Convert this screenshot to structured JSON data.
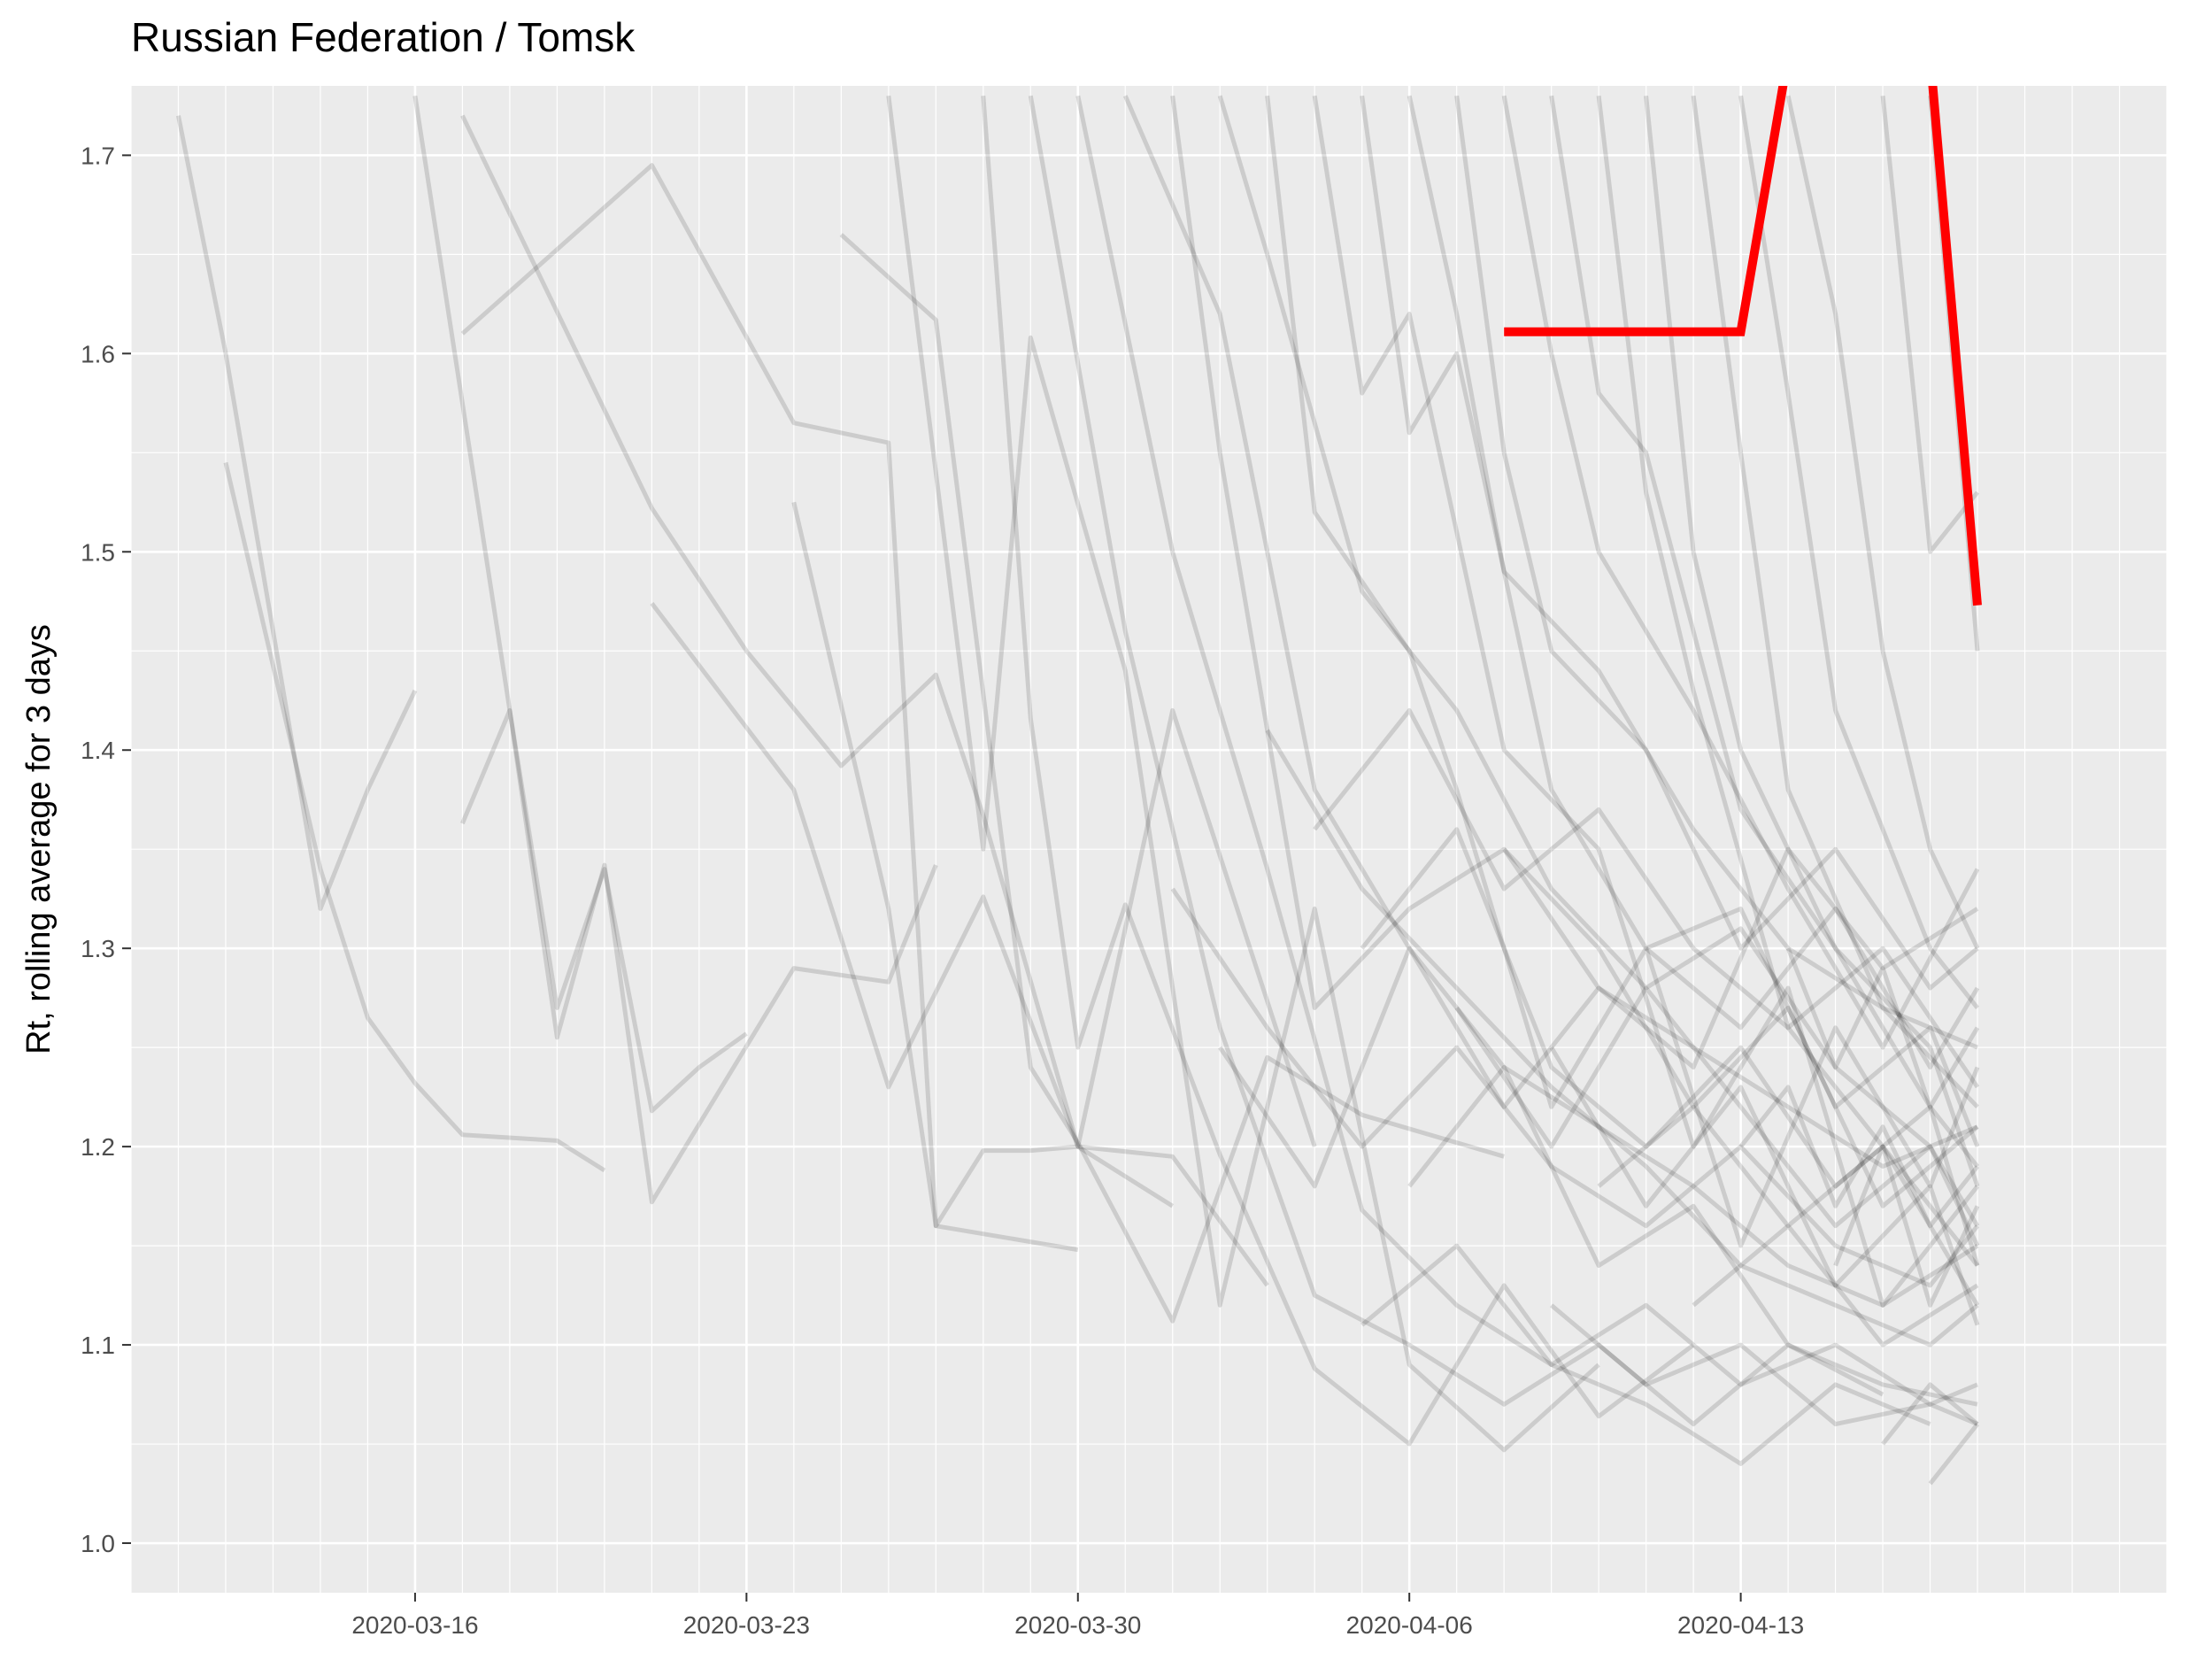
{
  "chart_data": {
    "type": "line",
    "title": "Russian Federation / Tomsk",
    "xlabel": "",
    "ylabel": "Rt, rolling average for 3 days",
    "x_ticks": [
      "2020-03-16",
      "2020-03-23",
      "2020-03-30",
      "2020-04-06",
      "2020-04-13"
    ],
    "y_ticks": [
      "1.0",
      "1.1",
      "1.2",
      "1.3",
      "1.4",
      "1.5",
      "1.6",
      "1.7"
    ],
    "xlim": [
      "2020-03-10",
      "2020-04-22"
    ],
    "ylim": [
      0.975,
      1.735
    ],
    "grid": true,
    "legend": "none",
    "colors": {
      "panel": "#ebebeb",
      "grid": "#ffffff",
      "highlight": "#ff0000",
      "background_series": "#000000"
    },
    "highlight_series": {
      "x": [
        "2020-04-08",
        "2020-04-09",
        "2020-04-10",
        "2020-04-11",
        "2020-04-12",
        "2020-04-13",
        "2020-04-14",
        "2020-04-15",
        "2020-04-16",
        "2020-04-17",
        "2020-04-18"
      ],
      "y": [
        1.611,
        1.611,
        1.611,
        1.611,
        1.611,
        1.611,
        1.75,
        1.85,
        1.85,
        1.75,
        1.473
      ]
    },
    "background_series": [
      {
        "x": [
          "2020-03-11",
          "2020-03-12",
          "2020-03-14",
          "2020-03-15",
          "2020-03-16"
        ],
        "y": [
          1.72,
          1.6,
          1.32,
          1.38,
          1.43
        ]
      },
      {
        "x": [
          "2020-03-12",
          "2020-03-14",
          "2020-03-15",
          "2020-03-16",
          "2020-03-17",
          "2020-03-19",
          "2020-03-20"
        ],
        "y": [
          1.545,
          1.34,
          1.265,
          1.232,
          1.206,
          1.203,
          1.188
        ]
      },
      {
        "x": [
          "2020-03-17",
          "2020-03-18",
          "2020-03-19",
          "2020-03-20",
          "2020-03-21",
          "2020-03-22",
          "2020-03-23"
        ],
        "y": [
          1.363,
          1.42,
          1.27,
          1.34,
          1.218,
          1.24,
          1.257
        ]
      },
      {
        "x": [
          "2020-03-17",
          "2020-03-21",
          "2020-03-24",
          "2020-03-26",
          "2020-03-27",
          "2020-03-30"
        ],
        "y": [
          1.61,
          1.695,
          1.565,
          1.555,
          1.16,
          1.148
        ]
      },
      {
        "x": [
          "2020-03-17",
          "2020-03-21",
          "2020-03-23",
          "2020-03-25",
          "2020-03-27",
          "2020-03-28",
          "2020-03-30",
          "2020-04-01"
        ],
        "y": [
          1.72,
          1.522,
          1.45,
          1.392,
          1.438,
          1.367,
          1.2,
          1.17
        ]
      },
      {
        "x": [
          "2020-03-16",
          "2020-03-18",
          "2020-03-19",
          "2020-03-20",
          "2020-03-21",
          "2020-03-24",
          "2020-03-26",
          "2020-03-27"
        ],
        "y": [
          1.73,
          1.42,
          1.255,
          1.342,
          1.172,
          1.29,
          1.283,
          1.342
        ]
      },
      {
        "x": [
          "2020-03-21",
          "2020-03-24",
          "2020-03-26",
          "2020-03-28",
          "2020-03-30",
          "2020-04-01",
          "2020-04-03"
        ],
        "y": [
          1.474,
          1.38,
          1.23,
          1.326,
          1.2,
          1.195,
          1.13
        ]
      },
      {
        "x": [
          "2020-03-24",
          "2020-03-26",
          "2020-03-27",
          "2020-03-28",
          "2020-03-29",
          "2020-03-30",
          "2020-04-01",
          "2020-04-04"
        ],
        "y": [
          1.525,
          1.32,
          1.16,
          1.198,
          1.198,
          1.2,
          1.42,
          1.2
        ]
      },
      {
        "x": [
          "2020-03-25",
          "2020-03-27",
          "2020-03-29",
          "2020-03-30",
          "2020-04-01",
          "2020-04-03",
          "2020-04-05",
          "2020-04-08"
        ],
        "y": [
          1.66,
          1.617,
          1.24,
          1.202,
          1.112,
          1.245,
          1.216,
          1.195
        ]
      },
      {
        "x": [
          "2020-03-26",
          "2020-03-28",
          "2020-03-29",
          "2020-03-31",
          "2020-04-02",
          "2020-04-04",
          "2020-04-06",
          "2020-04-08",
          "2020-04-10"
        ],
        "y": [
          1.73,
          1.35,
          1.608,
          1.44,
          1.12,
          1.32,
          1.09,
          1.047,
          1.09
        ]
      },
      {
        "x": [
          "2020-03-28",
          "2020-03-29",
          "2020-03-30",
          "2020-03-31",
          "2020-04-02",
          "2020-04-04",
          "2020-04-06",
          "2020-04-08",
          "2020-04-10",
          "2020-04-12"
        ],
        "y": [
          1.73,
          1.416,
          1.25,
          1.322,
          1.196,
          1.088,
          1.05,
          1.13,
          1.064,
          1.1
        ]
      },
      {
        "x": [
          "2020-03-29",
          "2020-03-31",
          "2020-04-02",
          "2020-04-04",
          "2020-04-06",
          "2020-04-08",
          "2020-04-10",
          "2020-04-12",
          "2020-04-14",
          "2020-04-16"
        ],
        "y": [
          1.73,
          1.46,
          1.26,
          1.125,
          1.1,
          1.07,
          1.1,
          1.06,
          1.1,
          1.075
        ]
      },
      {
        "x": [
          "2020-03-30",
          "2020-04-01",
          "2020-04-03",
          "2020-04-05",
          "2020-04-07",
          "2020-04-09",
          "2020-04-11",
          "2020-04-13",
          "2020-04-15",
          "2020-04-17"
        ],
        "y": [
          1.73,
          1.5,
          1.34,
          1.168,
          1.12,
          1.09,
          1.07,
          1.04,
          1.08,
          1.06
        ]
      },
      {
        "x": [
          "2020-03-31",
          "2020-04-02",
          "2020-04-04",
          "2020-04-06",
          "2020-04-08",
          "2020-04-10",
          "2020-04-12",
          "2020-04-14",
          "2020-04-16",
          "2020-04-18"
        ],
        "y": [
          1.73,
          1.62,
          1.38,
          1.3,
          1.24,
          1.21,
          1.18,
          1.14,
          1.12,
          1.15
        ]
      },
      {
        "x": [
          "2020-04-01",
          "2020-04-02",
          "2020-04-04",
          "2020-04-06",
          "2020-04-08",
          "2020-04-10",
          "2020-04-12",
          "2020-04-14",
          "2020-04-16",
          "2020-04-18"
        ],
        "y": [
          1.73,
          1.55,
          1.27,
          1.32,
          1.35,
          1.28,
          1.25,
          1.22,
          1.19,
          1.21
        ]
      },
      {
        "x": [
          "2020-04-02",
          "2020-04-03",
          "2020-04-05",
          "2020-04-07",
          "2020-04-09",
          "2020-04-11",
          "2020-04-13",
          "2020-04-15",
          "2020-04-17",
          "2020-04-18"
        ],
        "y": [
          1.73,
          1.65,
          1.48,
          1.42,
          1.33,
          1.28,
          1.31,
          1.24,
          1.2,
          1.16
        ]
      },
      {
        "x": [
          "2020-04-03",
          "2020-04-04",
          "2020-04-06",
          "2020-04-07",
          "2020-04-09",
          "2020-04-11",
          "2020-04-13",
          "2020-04-15",
          "2020-04-17",
          "2020-04-18"
        ],
        "y": [
          1.73,
          1.52,
          1.45,
          1.38,
          1.22,
          1.3,
          1.15,
          1.26,
          1.18,
          1.24
        ]
      },
      {
        "x": [
          "2020-04-04",
          "2020-04-05",
          "2020-04-06",
          "2020-04-08",
          "2020-04-10",
          "2020-04-12",
          "2020-04-14",
          "2020-04-16",
          "2020-04-18"
        ],
        "y": [
          1.73,
          1.58,
          1.62,
          1.4,
          1.35,
          1.2,
          1.28,
          1.12,
          1.18
        ]
      },
      {
        "x": [
          "2020-04-05",
          "2020-04-06",
          "2020-04-07",
          "2020-04-09",
          "2020-04-11",
          "2020-04-13",
          "2020-04-15",
          "2020-04-17",
          "2020-04-18"
        ],
        "y": [
          1.73,
          1.56,
          1.6,
          1.38,
          1.3,
          1.32,
          1.22,
          1.26,
          1.2
        ]
      },
      {
        "x": [
          "2020-04-06",
          "2020-04-07",
          "2020-04-08",
          "2020-04-10",
          "2020-04-12",
          "2020-04-14",
          "2020-04-16",
          "2020-04-18"
        ],
        "y": [
          1.73,
          1.62,
          1.49,
          1.44,
          1.36,
          1.3,
          1.27,
          1.25
        ]
      },
      {
        "x": [
          "2020-04-07",
          "2020-04-08",
          "2020-04-09",
          "2020-04-11",
          "2020-04-13",
          "2020-04-15",
          "2020-04-17",
          "2020-04-18"
        ],
        "y": [
          1.73,
          1.55,
          1.45,
          1.4,
          1.3,
          1.35,
          1.28,
          1.3
        ]
      },
      {
        "x": [
          "2020-04-08",
          "2020-04-09",
          "2020-04-10",
          "2020-04-12",
          "2020-04-14",
          "2020-04-16",
          "2020-04-18"
        ],
        "y": [
          1.73,
          1.6,
          1.5,
          1.42,
          1.33,
          1.25,
          1.34
        ]
      },
      {
        "x": [
          "2020-04-09",
          "2020-04-10",
          "2020-04-11",
          "2020-04-13",
          "2020-04-15",
          "2020-04-17",
          "2020-04-18"
        ],
        "y": [
          1.73,
          1.58,
          1.55,
          1.37,
          1.3,
          1.22,
          1.14
        ]
      },
      {
        "x": [
          "2020-04-10",
          "2020-04-11",
          "2020-04-12",
          "2020-04-14",
          "2020-04-16",
          "2020-04-18"
        ],
        "y": [
          1.73,
          1.53,
          1.43,
          1.26,
          1.2,
          1.12
        ]
      },
      {
        "x": [
          "2020-04-11",
          "2020-04-12",
          "2020-04-13",
          "2020-04-15",
          "2020-04-17",
          "2020-04-18"
        ],
        "y": [
          1.73,
          1.5,
          1.4,
          1.3,
          1.25,
          1.18
        ]
      },
      {
        "x": [
          "2020-04-12",
          "2020-04-13",
          "2020-04-14",
          "2020-04-16",
          "2020-04-18"
        ],
        "y": [
          1.73,
          1.55,
          1.38,
          1.27,
          1.22
        ]
      },
      {
        "x": [
          "2020-04-13",
          "2020-04-14",
          "2020-04-15",
          "2020-04-17",
          "2020-04-18"
        ],
        "y": [
          1.73,
          1.58,
          1.42,
          1.3,
          1.27
        ]
      },
      {
        "x": [
          "2020-04-14",
          "2020-04-15",
          "2020-04-16",
          "2020-04-17",
          "2020-04-18"
        ],
        "y": [
          1.73,
          1.62,
          1.45,
          1.35,
          1.3
        ]
      },
      {
        "x": [
          "2020-04-16",
          "2020-04-17",
          "2020-04-18"
        ],
        "y": [
          1.73,
          1.5,
          1.53
        ]
      },
      {
        "x": [
          "2020-04-17",
          "2020-04-18"
        ],
        "y": [
          1.73,
          1.45
        ]
      },
      {
        "x": [
          "2020-04-02",
          "2020-04-04",
          "2020-04-06",
          "2020-04-08",
          "2020-04-10",
          "2020-04-12",
          "2020-04-14",
          "2020-04-16",
          "2020-04-18"
        ],
        "y": [
          1.25,
          1.18,
          1.3,
          1.22,
          1.28,
          1.24,
          1.35,
          1.29,
          1.32
        ]
      },
      {
        "x": [
          "2020-04-01",
          "2020-04-03",
          "2020-04-05",
          "2020-04-07",
          "2020-04-09",
          "2020-04-11",
          "2020-04-13",
          "2020-04-15",
          "2020-04-17",
          "2020-04-18"
        ],
        "y": [
          1.33,
          1.26,
          1.2,
          1.25,
          1.19,
          1.16,
          1.2,
          1.15,
          1.13,
          1.16
        ]
      },
      {
        "x": [
          "2020-04-03",
          "2020-04-05",
          "2020-04-07",
          "2020-04-09",
          "2020-04-11",
          "2020-04-13",
          "2020-04-15",
          "2020-04-17",
          "2020-04-18"
        ],
        "y": [
          1.41,
          1.33,
          1.28,
          1.23,
          1.19,
          1.14,
          1.12,
          1.1,
          1.12
        ]
      },
      {
        "x": [
          "2020-04-04",
          "2020-04-06",
          "2020-04-08",
          "2020-04-10",
          "2020-04-12",
          "2020-04-14",
          "2020-04-16",
          "2020-04-18"
        ],
        "y": [
          1.36,
          1.42,
          1.33,
          1.37,
          1.3,
          1.26,
          1.3,
          1.23
        ]
      },
      {
        "x": [
          "2020-04-05",
          "2020-04-07",
          "2020-04-09",
          "2020-04-11",
          "2020-04-13",
          "2020-04-15",
          "2020-04-17",
          "2020-04-18"
        ],
        "y": [
          1.3,
          1.36,
          1.24,
          1.2,
          1.25,
          1.18,
          1.22,
          1.19
        ]
      },
      {
        "x": [
          "2020-04-06",
          "2020-04-08",
          "2020-04-10",
          "2020-04-12",
          "2020-04-14",
          "2020-04-16",
          "2020-04-18"
        ],
        "y": [
          1.18,
          1.24,
          1.14,
          1.17,
          1.1,
          1.08,
          1.07
        ]
      },
      {
        "x": [
          "2020-04-07",
          "2020-04-09",
          "2020-04-11",
          "2020-04-13",
          "2020-04-15",
          "2020-04-17",
          "2020-04-18"
        ],
        "y": [
          1.27,
          1.2,
          1.28,
          1.22,
          1.16,
          1.2,
          1.15
        ]
      },
      {
        "x": [
          "2020-04-08",
          "2020-04-10",
          "2020-04-12",
          "2020-04-14",
          "2020-04-16",
          "2020-04-18"
        ],
        "y": [
          1.35,
          1.3,
          1.22,
          1.27,
          1.17,
          1.21
        ]
      },
      {
        "x": [
          "2020-04-09",
          "2020-04-11",
          "2020-04-13",
          "2020-04-15",
          "2020-04-17",
          "2020-04-18"
        ],
        "y": [
          1.25,
          1.17,
          1.23,
          1.13,
          1.18,
          1.11
        ]
      },
      {
        "x": [
          "2020-04-10",
          "2020-04-12",
          "2020-04-14",
          "2020-04-16",
          "2020-04-18"
        ],
        "y": [
          1.18,
          1.22,
          1.16,
          1.2,
          1.14
        ]
      },
      {
        "x": [
          "2020-04-11",
          "2020-04-13",
          "2020-04-15",
          "2020-04-17",
          "2020-04-18"
        ],
        "y": [
          1.3,
          1.26,
          1.32,
          1.24,
          1.28
        ]
      },
      {
        "x": [
          "2020-04-12",
          "2020-04-14",
          "2020-04-16",
          "2020-04-18"
        ],
        "y": [
          1.12,
          1.16,
          1.1,
          1.13
        ]
      },
      {
        "x": [
          "2020-04-09",
          "2020-04-11",
          "2020-04-13",
          "2020-04-15",
          "2020-04-17",
          "2020-04-18"
        ],
        "y": [
          1.12,
          1.08,
          1.1,
          1.06,
          1.07,
          1.06
        ]
      },
      {
        "x": [
          "2020-04-05",
          "2020-04-07",
          "2020-04-09",
          "2020-04-11",
          "2020-04-13",
          "2020-04-15",
          "2020-04-17",
          "2020-04-18"
        ],
        "y": [
          1.11,
          1.15,
          1.09,
          1.12,
          1.08,
          1.1,
          1.07,
          1.08
        ]
      },
      {
        "x": [
          "2020-04-13",
          "2020-04-14",
          "2020-04-15",
          "2020-04-16",
          "2020-04-17",
          "2020-04-18"
        ],
        "y": [
          1.2,
          1.23,
          1.17,
          1.21,
          1.16,
          1.19
        ]
      },
      {
        "x": [
          "2020-04-14",
          "2020-04-15",
          "2020-04-16",
          "2020-04-17",
          "2020-04-18"
        ],
        "y": [
          1.3,
          1.24,
          1.29,
          1.22,
          1.26
        ]
      },
      {
        "x": [
          "2020-04-15",
          "2020-04-16",
          "2020-04-17",
          "2020-04-18"
        ],
        "y": [
          1.14,
          1.2,
          1.12,
          1.17
        ]
      },
      {
        "x": [
          "2020-04-16",
          "2020-04-17",
          "2020-04-18"
        ],
        "y": [
          1.05,
          1.08,
          1.06
        ]
      },
      {
        "x": [
          "2020-04-17",
          "2020-04-18"
        ],
        "y": [
          1.03,
          1.06
        ]
      }
    ]
  }
}
